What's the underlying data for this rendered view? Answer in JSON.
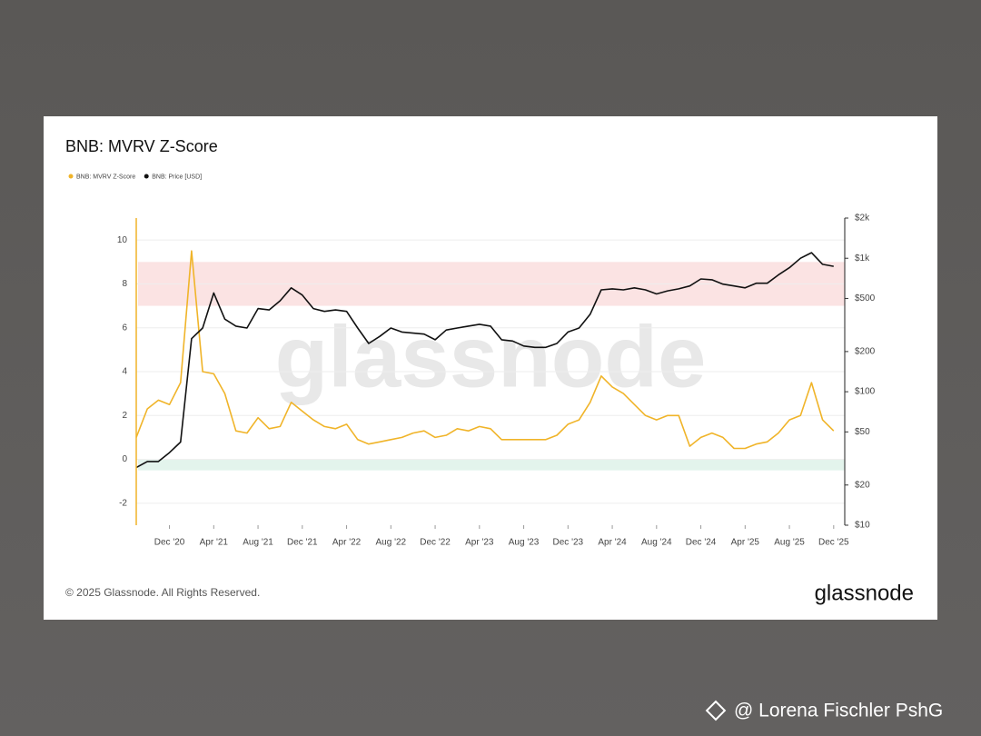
{
  "chart_data": {
    "type": "line",
    "title": "BNB: MVRV Z-Score",
    "x": [
      "2020-09",
      "2020-10",
      "2020-11",
      "2020-12",
      "2021-01",
      "2021-02",
      "2021-03",
      "2021-04",
      "2021-05",
      "2021-06",
      "2021-07",
      "2021-08",
      "2021-09",
      "2021-10",
      "2021-11",
      "2021-12",
      "2022-01",
      "2022-02",
      "2022-03",
      "2022-04",
      "2022-05",
      "2022-06",
      "2022-07",
      "2022-08",
      "2022-09",
      "2022-10",
      "2022-11",
      "2022-12",
      "2023-01",
      "2023-02",
      "2023-03",
      "2023-04",
      "2023-05",
      "2023-06",
      "2023-07",
      "2023-08",
      "2023-09",
      "2023-10",
      "2023-11",
      "2023-12",
      "2024-01",
      "2024-02",
      "2024-03",
      "2024-04",
      "2024-05",
      "2024-06",
      "2024-07",
      "2024-08",
      "2024-09",
      "2024-10",
      "2024-11",
      "2024-12",
      "2025-01",
      "2025-02",
      "2025-03",
      "2025-04",
      "2025-05",
      "2025-06",
      "2025-07",
      "2025-08",
      "2025-09",
      "2025-10",
      "2025-11",
      "2025-12"
    ],
    "series": [
      {
        "name": "BNB: MVRV Z-Score",
        "color": "#f0b429",
        "axis": "y",
        "values": [
          1,
          2.3,
          2.7,
          2.5,
          3.5,
          9.5,
          4,
          3.9,
          3,
          1.3,
          1.2,
          1.9,
          1.4,
          1.5,
          2.6,
          2.2,
          1.8,
          1.5,
          1.4,
          1.6,
          0.9,
          0.7,
          0.8,
          0.9,
          1,
          1.2,
          1.3,
          1,
          1.1,
          1.4,
          1.3,
          1.5,
          1.4,
          0.9,
          0.9,
          0.9,
          0.9,
          0.9,
          1.1,
          1.6,
          1.8,
          2.6,
          3.8,
          3.3,
          3,
          2.5,
          2,
          1.8,
          2,
          2,
          0.6,
          1,
          1.2,
          1,
          0.5,
          0.5,
          0.7,
          0.8,
          1.2,
          1.8,
          2,
          3.5,
          1.8,
          1.3
        ]
      },
      {
        "name": "BNB: Price [USD]",
        "color": "#111111",
        "axis": "y2",
        "values": [
          27,
          30,
          30,
          35,
          42,
          250,
          300,
          550,
          350,
          310,
          300,
          420,
          410,
          480,
          600,
          530,
          420,
          400,
          410,
          400,
          300,
          230,
          260,
          300,
          280,
          275,
          270,
          245,
          290,
          300,
          310,
          320,
          310,
          245,
          240,
          220,
          215,
          215,
          230,
          280,
          300,
          380,
          580,
          590,
          580,
          600,
          580,
          540,
          570,
          590,
          620,
          700,
          690,
          640,
          620,
          600,
          650,
          650,
          750,
          850,
          1000,
          1100,
          900,
          870
        ]
      }
    ],
    "xlim": [
      "2020-09",
      "2026-01"
    ],
    "xticks": [
      {
        "value": "2020-12",
        "label": "Dec '20"
      },
      {
        "value": "2021-04",
        "label": "Apr '21"
      },
      {
        "value": "2021-08",
        "label": "Aug '21"
      },
      {
        "value": "2021-12",
        "label": "Dec '21"
      },
      {
        "value": "2022-04",
        "label": "Apr '22"
      },
      {
        "value": "2022-08",
        "label": "Aug '22"
      },
      {
        "value": "2022-12",
        "label": "Dec '22"
      },
      {
        "value": "2023-04",
        "label": "Apr '23"
      },
      {
        "value": "2023-08",
        "label": "Aug '23"
      },
      {
        "value": "2023-12",
        "label": "Dec '23"
      },
      {
        "value": "2024-04",
        "label": "Apr '24"
      },
      {
        "value": "2024-08",
        "label": "Aug '24"
      },
      {
        "value": "2024-12",
        "label": "Dec '24"
      },
      {
        "value": "2025-04",
        "label": "Apr '25"
      },
      {
        "value": "2025-08",
        "label": "Aug '25"
      },
      {
        "value": "2025-12",
        "label": "Dec '25"
      }
    ],
    "ylim": [
      -3,
      11
    ],
    "yticks": [
      -2,
      0,
      2,
      4,
      6,
      8,
      10
    ],
    "y2lim": [
      10,
      2000
    ],
    "y2log": true,
    "y2ticks": [
      {
        "value": 10,
        "label": "$10"
      },
      {
        "value": 20,
        "label": "$20"
      },
      {
        "value": 50,
        "label": "$50"
      },
      {
        "value": 100,
        "label": "$100"
      },
      {
        "value": 200,
        "label": "$200"
      },
      {
        "value": 500,
        "label": "$500"
      },
      {
        "value": 1000,
        "label": "$1k"
      },
      {
        "value": 2000,
        "label": "$2k"
      }
    ],
    "grid": true,
    "bands": [
      {
        "from": 7,
        "to": 9,
        "color": "#fbe3e3"
      },
      {
        "from": -0.5,
        "to": 0,
        "color": "#e3f4ec"
      }
    ],
    "legend": "top-left"
  },
  "watermark": "glassnode",
  "footer": "© 2025 Glassnode. All Rights Reserved.",
  "logo": "glassnode",
  "credit": "@ Lorena Fischler PshG"
}
